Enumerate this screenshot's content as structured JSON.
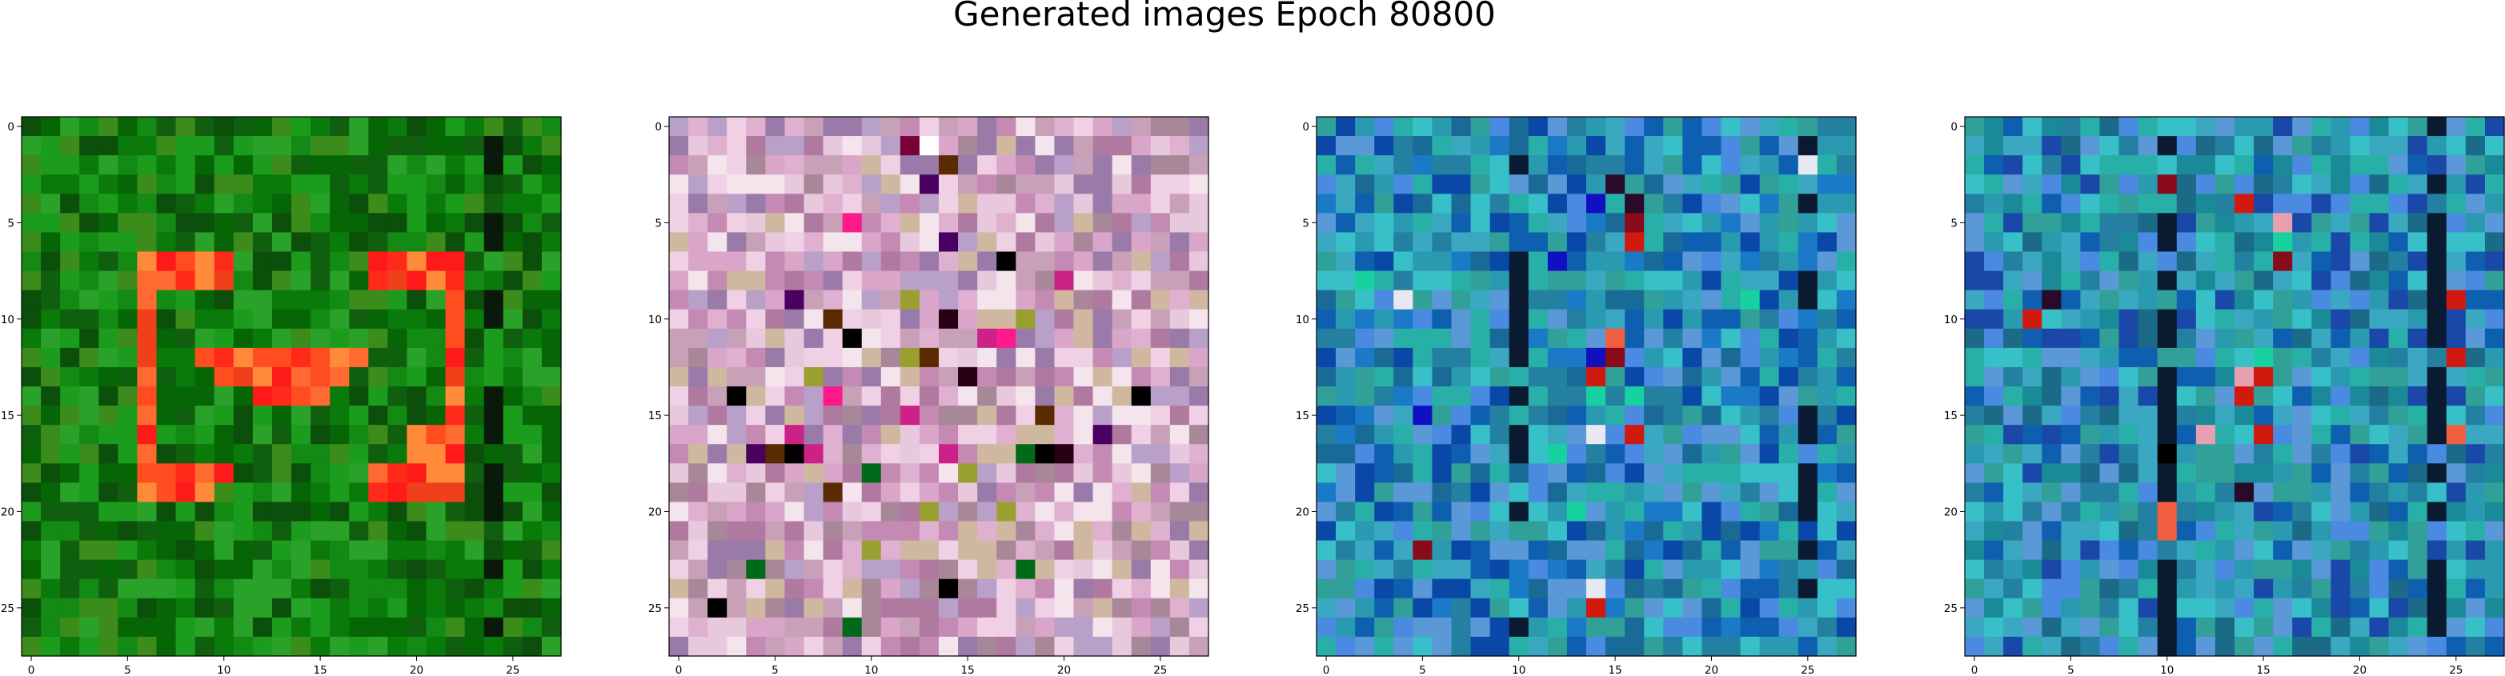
{
  "title": "Generated images Epoch 80800",
  "chart_data": {
    "type": "heatmap",
    "title": "Generated images Epoch 80800",
    "grid": false,
    "panels": [
      {
        "grid_size": [
          28,
          28
        ],
        "xlim": [
          -0.5,
          27.5
        ],
        "ylim": [
          27.5,
          -0.5
        ],
        "xticks": [
          0,
          5,
          10,
          15,
          20,
          25
        ],
        "yticks": [
          0,
          5,
          10,
          15,
          20,
          25
        ],
        "palette": [
          "#0a7a0a",
          "#138a13",
          "#066606",
          "#1c9c1c",
          "#0f5f0f",
          "#2aa22a",
          "#0b4f0b",
          "#3c8c1c"
        ],
        "accent_palette": [
          "#ff2a1a",
          "#ff4d20",
          "#f0401a",
          "#ff6a30",
          "#ff1a1a",
          "#ff8a3a"
        ],
        "accent_cells": [
          [
            7,
            6
          ],
          [
            7,
            7
          ],
          [
            7,
            8
          ],
          [
            7,
            9
          ],
          [
            7,
            10
          ],
          [
            8,
            6
          ],
          [
            8,
            7
          ],
          [
            8,
            8
          ],
          [
            8,
            9
          ],
          [
            8,
            10
          ],
          [
            9,
            6
          ],
          [
            10,
            6
          ],
          [
            11,
            6
          ],
          [
            12,
            6
          ],
          [
            13,
            6
          ],
          [
            14,
            6
          ],
          [
            15,
            6
          ],
          [
            16,
            6
          ],
          [
            17,
            6
          ],
          [
            18,
            6
          ],
          [
            19,
            6
          ],
          [
            18,
            7
          ],
          [
            18,
            8
          ],
          [
            18,
            9
          ],
          [
            18,
            10
          ],
          [
            19,
            7
          ],
          [
            19,
            8
          ],
          [
            19,
            9
          ],
          [
            12,
            9
          ],
          [
            12,
            10
          ],
          [
            12,
            11
          ],
          [
            12,
            12
          ],
          [
            12,
            13
          ],
          [
            12,
            14
          ],
          [
            12,
            15
          ],
          [
            12,
            16
          ],
          [
            12,
            17
          ],
          [
            13,
            10
          ],
          [
            13,
            11
          ],
          [
            13,
            12
          ],
          [
            13,
            13
          ],
          [
            13,
            14
          ],
          [
            13,
            15
          ],
          [
            13,
            16
          ],
          [
            14,
            12
          ],
          [
            14,
            13
          ],
          [
            14,
            14
          ],
          [
            14,
            15
          ],
          [
            7,
            18
          ],
          [
            7,
            19
          ],
          [
            7,
            20
          ],
          [
            7,
            21
          ],
          [
            7,
            22
          ],
          [
            8,
            18
          ],
          [
            8,
            19
          ],
          [
            8,
            20
          ],
          [
            8,
            21
          ],
          [
            8,
            22
          ],
          [
            9,
            22
          ],
          [
            10,
            22
          ],
          [
            11,
            22
          ],
          [
            12,
            22
          ],
          [
            13,
            22
          ],
          [
            14,
            22
          ],
          [
            15,
            22
          ],
          [
            16,
            22
          ],
          [
            17,
            22
          ],
          [
            18,
            22
          ],
          [
            19,
            22
          ],
          [
            18,
            18
          ],
          [
            18,
            19
          ],
          [
            18,
            20
          ],
          [
            18,
            21
          ],
          [
            19,
            18
          ],
          [
            19,
            19
          ],
          [
            19,
            20
          ],
          [
            19,
            21
          ],
          [
            16,
            20
          ],
          [
            16,
            21
          ],
          [
            17,
            20
          ],
          [
            17,
            21
          ]
        ],
        "dark_columns": [
          24
        ]
      },
      {
        "grid_size": [
          28,
          28
        ],
        "xlim": [
          -0.5,
          27.5
        ],
        "ylim": [
          27.5,
          -0.5
        ],
        "xticks": [
          0,
          5,
          10,
          15,
          20,
          25
        ],
        "yticks": [
          0,
          5,
          10,
          15,
          20,
          25
        ],
        "palette": [
          "#d9a6c9",
          "#c48ab4",
          "#e8c8dc",
          "#b07aa0",
          "#f0d0e4",
          "#9a7aa8",
          "#c8a0b8",
          "#e0b0d0",
          "#a88898",
          "#f4e4ec",
          "#b8a0c8",
          "#d0b8a0"
        ],
        "accent_palette": [
          "#2a0014",
          "#7a003a",
          "#ff1a8a",
          "#4a0060",
          "#006a1a",
          "#9aa030",
          "#ffffff",
          "#000000",
          "#cc2288",
          "#5a2a00"
        ],
        "accent_cells": [
          [
            1,
            12
          ],
          [
            1,
            13
          ],
          [
            2,
            14
          ],
          [
            3,
            13
          ],
          [
            5,
            9
          ],
          [
            6,
            14
          ],
          [
            7,
            17
          ],
          [
            8,
            20
          ],
          [
            9,
            6
          ],
          [
            9,
            12
          ],
          [
            10,
            8
          ],
          [
            10,
            14
          ],
          [
            10,
            18
          ],
          [
            11,
            9
          ],
          [
            11,
            16
          ],
          [
            11,
            17
          ],
          [
            12,
            12
          ],
          [
            12,
            13
          ],
          [
            13,
            7
          ],
          [
            13,
            15
          ],
          [
            14,
            3
          ],
          [
            14,
            8
          ],
          [
            14,
            24
          ],
          [
            15,
            12
          ],
          [
            15,
            19
          ],
          [
            16,
            6
          ],
          [
            16,
            22
          ],
          [
            17,
            4
          ],
          [
            17,
            5
          ],
          [
            17,
            6
          ],
          [
            17,
            7
          ],
          [
            17,
            14
          ],
          [
            17,
            18
          ],
          [
            17,
            19
          ],
          [
            17,
            20
          ],
          [
            18,
            10
          ],
          [
            18,
            15
          ],
          [
            19,
            8
          ],
          [
            20,
            13
          ],
          [
            20,
            17
          ],
          [
            22,
            10
          ],
          [
            23,
            4
          ],
          [
            23,
            18
          ],
          [
            24,
            14
          ],
          [
            25,
            2
          ],
          [
            26,
            9
          ]
        ],
        "dark_columns": []
      },
      {
        "grid_size": [
          28,
          28
        ],
        "xlim": [
          -0.5,
          27.5
        ],
        "ylim": [
          27.5,
          -0.5
        ],
        "xticks": [
          0,
          5,
          10,
          15,
          20,
          25
        ],
        "yticks": [
          0,
          5,
          10,
          15,
          20,
          25
        ],
        "palette": [
          "#2a9ab0",
          "#1a7ac8",
          "#3aa8c0",
          "#0f5fb0",
          "#28b0a8",
          "#4a8ae0",
          "#1a6a98",
          "#38c0c8",
          "#2480a0",
          "#5a98d8",
          "#0a48a8",
          "#30a098"
        ],
        "accent_palette": [
          "#8a0a1a",
          "#d01a10",
          "#e8e8f0",
          "#2a0a2a",
          "#f06040",
          "#18d0a0",
          "#1010c0"
        ],
        "accent_cells": [
          [
            3,
            15
          ],
          [
            4,
            14
          ],
          [
            4,
            16
          ],
          [
            5,
            16
          ],
          [
            6,
            16
          ],
          [
            7,
            12
          ],
          [
            9,
            4
          ],
          [
            11,
            15
          ],
          [
            12,
            14
          ],
          [
            12,
            15
          ],
          [
            13,
            14
          ],
          [
            14,
            14
          ],
          [
            14,
            16
          ],
          [
            15,
            5
          ],
          [
            16,
            14
          ],
          [
            16,
            16
          ],
          [
            17,
            12
          ],
          [
            20,
            13
          ],
          [
            22,
            5
          ],
          [
            24,
            14
          ],
          [
            25,
            14
          ],
          [
            9,
            22
          ],
          [
            2,
            25
          ],
          [
            8,
            2
          ]
        ],
        "dark_columns": [
          10,
          25
        ]
      },
      {
        "grid_size": [
          28,
          28
        ],
        "xlim": [
          -0.5,
          27.5
        ],
        "ylim": [
          27.5,
          -0.5
        ],
        "xticks": [
          0,
          5,
          10,
          15,
          20,
          25
        ],
        "yticks": [
          0,
          5,
          10,
          15,
          20,
          25
        ],
        "palette": [
          "#2a9ab0",
          "#1a8a98",
          "#3aa8c0",
          "#0f5fb0",
          "#28b0a8",
          "#4a8ae0",
          "#1a6a88",
          "#38c0c8",
          "#2480a0",
          "#5a98d8",
          "#1a48a8",
          "#30a098"
        ],
        "accent_palette": [
          "#8a0a1a",
          "#d01a10",
          "#e8a0b0",
          "#2a0a2a",
          "#f06040",
          "#18d0a0",
          "#000000"
        ],
        "accent_cells": [
          [
            3,
            10
          ],
          [
            4,
            14
          ],
          [
            5,
            16
          ],
          [
            6,
            16
          ],
          [
            7,
            16
          ],
          [
            9,
            4
          ],
          [
            10,
            3
          ],
          [
            12,
            15
          ],
          [
            13,
            14
          ],
          [
            13,
            15
          ],
          [
            14,
            14
          ],
          [
            16,
            12
          ],
          [
            16,
            15
          ],
          [
            17,
            10
          ],
          [
            19,
            14
          ],
          [
            20,
            10
          ],
          [
            21,
            10
          ],
          [
            12,
            25
          ],
          [
            16,
            25
          ],
          [
            9,
            25
          ]
        ],
        "dark_columns": [
          10,
          24
        ]
      }
    ]
  }
}
